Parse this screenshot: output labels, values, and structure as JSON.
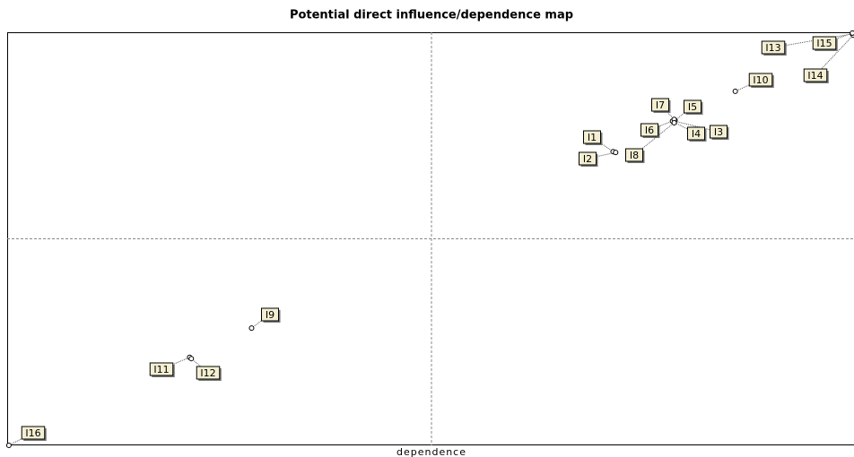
{
  "chart_data": {
    "type": "scatter",
    "title": "Potential direct influence/dependence map",
    "x_label": "dependence",
    "labels": [
      "I1",
      "I2",
      "I3",
      "I4",
      "I5",
      "I6",
      "I7",
      "I8",
      "I9",
      "I10",
      "I11",
      "I12",
      "I13",
      "I14",
      "I15",
      "I16"
    ],
    "x": [
      71.4,
      71.7,
      78.6,
      78.5,
      78.7,
      78.4,
      78.6,
      78.6,
      28.8,
      85.8,
      21.5,
      21.7,
      99.6,
      99.7,
      99.6,
      0.2
    ],
    "y": [
      71.1,
      70.9,
      78.5,
      78.3,
      78.7,
      78.5,
      78.9,
      78.1,
      28.4,
      85.7,
      21.3,
      21.0,
      99.6,
      99.3,
      99.8,
      0
    ],
    "xlim": [
      0,
      100
    ],
    "ylim": [
      0,
      100
    ],
    "color": "#000000",
    "label_fill": "#f4efd2"
  }
}
